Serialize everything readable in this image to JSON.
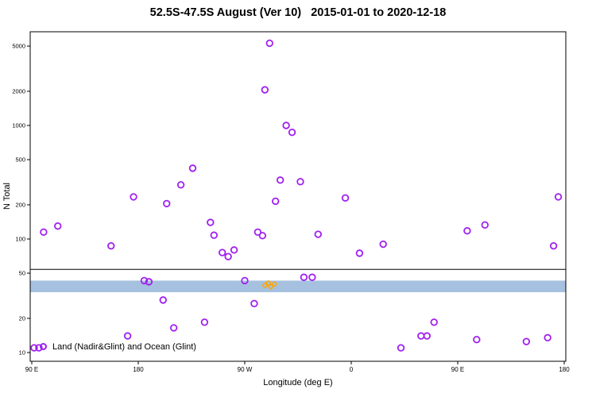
{
  "legend": {
    "label": "Land (Nadir&Glint) and Ocean (Glint)",
    "marker_color": "#A020F0"
  },
  "chart_data": {
    "type": "scatter",
    "title": "52.5S-47.5S August (Ver 10)   2015-01-01 to 2020-12-18",
    "xlabel": "Longitude (deg E)",
    "ylabel": "N Total",
    "x_axis": {
      "note": "longitude axis wraps eastward from 90E to 180, continuous coordinate 90..540",
      "range": [
        90,
        540
      ],
      "tick_positions": [
        90,
        180,
        270,
        360,
        450,
        540
      ],
      "tick_labels": [
        "90 E",
        "180",
        "90 W",
        "0",
        "90 E",
        "180"
      ]
    },
    "y_axis": {
      "scale": "log",
      "range": [
        8.5,
        6500
      ],
      "ticks": [
        10,
        20,
        50,
        100,
        200,
        500,
        1000,
        2000,
        5000
      ]
    },
    "hline": {
      "y": 54,
      "color": "#000000"
    },
    "band": {
      "y_min": 34,
      "y_max": 43,
      "color": "#A6C1DF"
    },
    "series": [
      {
        "name": "unlabeled-orange-points",
        "marker": "open-circle",
        "color": "#FFA500",
        "marker_radius": 2.5,
        "stroke_width": 1.5,
        "points": [
          [
            287,
            39
          ],
          [
            290,
            41
          ],
          [
            292,
            38
          ],
          [
            295,
            40
          ]
        ]
      },
      {
        "name": "Land (Nadir&Glint) and Ocean (Glint)",
        "marker": "open-circle",
        "color": "#A020F0",
        "marker_radius": 3.8,
        "stroke_width": 1.8,
        "points": [
          [
            92,
            11
          ],
          [
            96,
            11
          ],
          [
            100,
            115
          ],
          [
            112,
            130
          ],
          [
            157,
            87
          ],
          [
            171,
            14
          ],
          [
            176,
            235
          ],
          [
            185,
            43
          ],
          [
            189,
            42
          ],
          [
            201,
            29
          ],
          [
            204,
            205
          ],
          [
            210,
            16.5
          ],
          [
            216,
            300
          ],
          [
            226,
            420
          ],
          [
            236,
            18.5
          ],
          [
            241,
            140
          ],
          [
            244,
            108
          ],
          [
            251,
            76
          ],
          [
            256,
            70
          ],
          [
            261,
            80
          ],
          [
            270,
            43
          ],
          [
            278,
            27
          ],
          [
            281,
            115
          ],
          [
            285,
            107
          ],
          [
            287,
            2060
          ],
          [
            291,
            5300
          ],
          [
            296,
            215
          ],
          [
            300,
            330
          ],
          [
            305,
            1000
          ],
          [
            310,
            870
          ],
          [
            317,
            320
          ],
          [
            320,
            46
          ],
          [
            327,
            46
          ],
          [
            332,
            110
          ],
          [
            355,
            230
          ],
          [
            367,
            75
          ],
          [
            387,
            90
          ],
          [
            402,
            11
          ],
          [
            419,
            14
          ],
          [
            424,
            14
          ],
          [
            430,
            18.5
          ],
          [
            458,
            118
          ],
          [
            466,
            13
          ],
          [
            473,
            133
          ],
          [
            508,
            12.5
          ],
          [
            526,
            13.5
          ],
          [
            531,
            87
          ],
          [
            535,
            235
          ]
        ]
      }
    ]
  }
}
